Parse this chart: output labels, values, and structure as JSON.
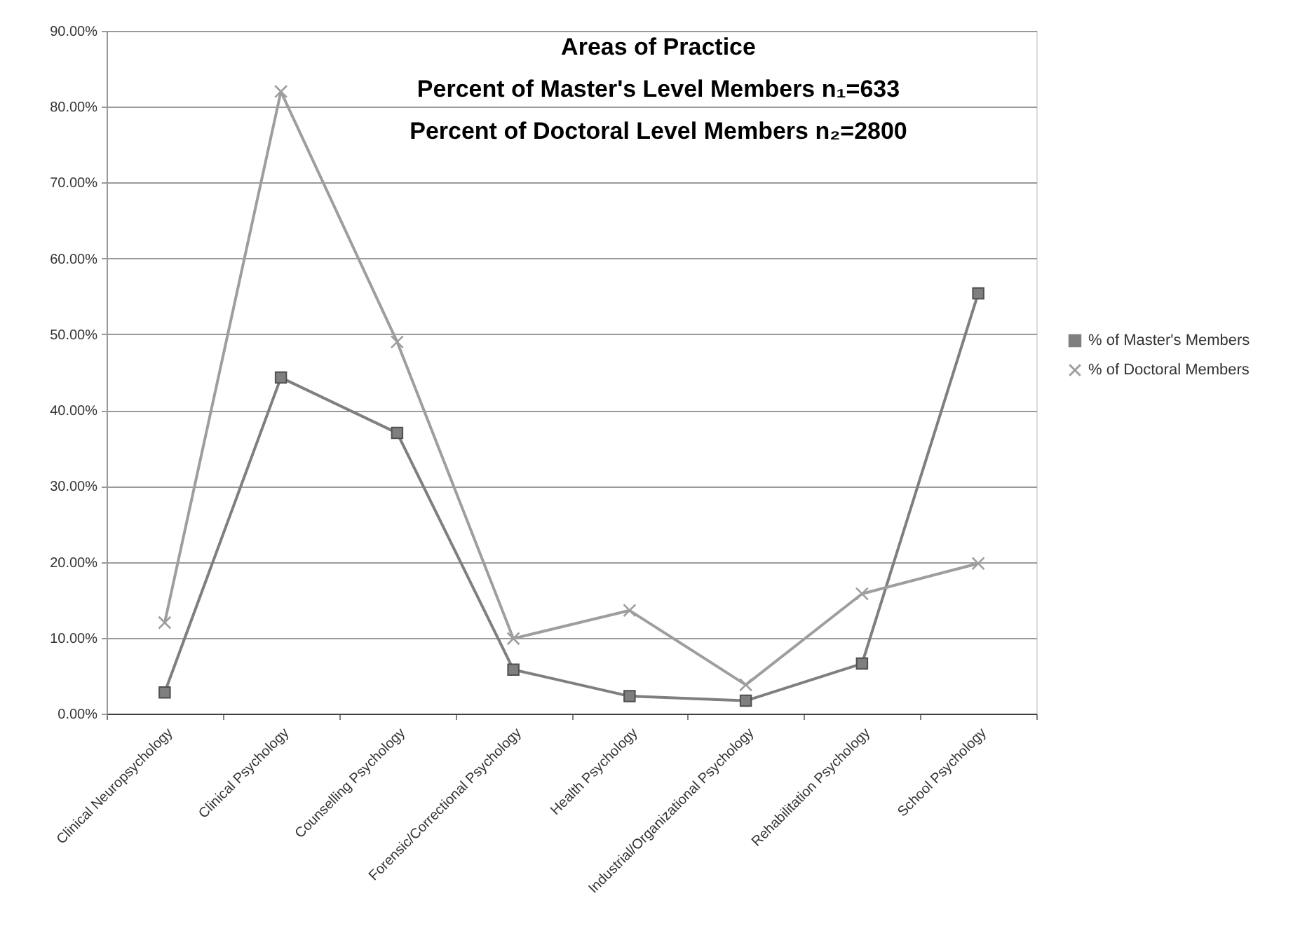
{
  "chart_data": {
    "type": "line",
    "title": "Areas of Practice\nPercent of Master's Level Members n₁=633\nPercent of Doctoral Level Members n₂=2800",
    "categories": [
      "Clinical Neuropsychology",
      "Clinical Psychology",
      "Counselling Psychology",
      "Forensic/Correctional Psychology",
      "Health Psychology",
      "Industrial/Organizational Psychology",
      "Rehabilitation Psychology",
      "School Psychology"
    ],
    "series": [
      {
        "name": "% of Master's Members",
        "color": "#7f7f7f",
        "marker": "square",
        "values": [
          2.8,
          44.3,
          37.0,
          5.8,
          2.3,
          1.7,
          6.6,
          55.4
        ]
      },
      {
        "name": "% of Doctoral Members",
        "color": "#9e9e9e",
        "marker": "cross",
        "values": [
          12.0,
          82.0,
          49.0,
          9.9,
          13.6,
          3.8,
          15.8,
          19.8
        ]
      }
    ],
    "ylim": [
      0,
      90
    ],
    "yticks": [
      {
        "value": 0,
        "label": "0.00%"
      },
      {
        "value": 10,
        "label": "10.00%"
      },
      {
        "value": 20,
        "label": "20.00%"
      },
      {
        "value": 30,
        "label": "30.00%"
      },
      {
        "value": 40,
        "label": "40.00%"
      },
      {
        "value": 50,
        "label": "50.00%"
      },
      {
        "value": 60,
        "label": "60.00%"
      },
      {
        "value": 70,
        "label": "70.00%"
      },
      {
        "value": 80,
        "label": "80.00%"
      },
      {
        "value": 90,
        "label": "90.00%"
      }
    ],
    "grid": "y",
    "legend": "right"
  }
}
